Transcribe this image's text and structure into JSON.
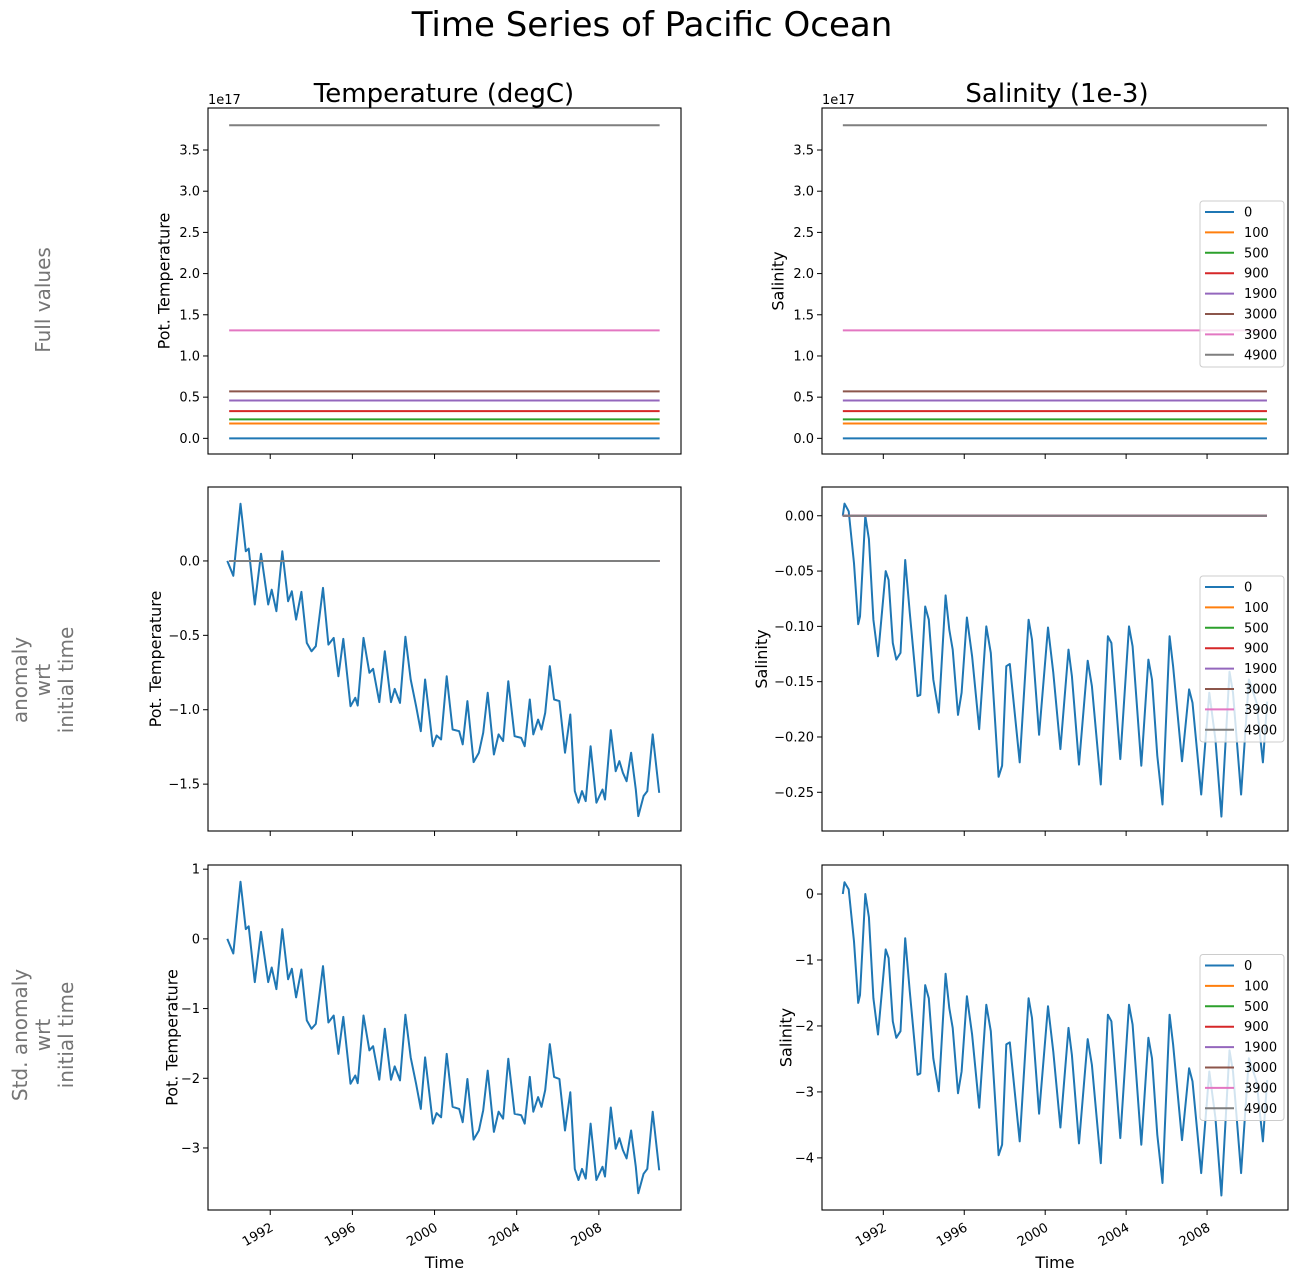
{
  "title": "Time Series of Pacific Ocean",
  "colors": [
    "#1f77b4",
    "#ff7f0e",
    "#2ca02c",
    "#d62728",
    "#9467bd",
    "#8c564b",
    "#e377c2",
    "#7f7f7f"
  ],
  "row_labels": [
    [
      "Full values"
    ],
    [
      "anomaly",
      "wrt",
      "initial time"
    ],
    [
      "Std. anomaly",
      "wrt",
      "initial time"
    ]
  ],
  "row_label_color": "#757575",
  "chart_data": {
    "type": "line",
    "grid": false,
    "column_titles": [
      "Temperature (degC)",
      "Salinity (1e-3)"
    ],
    "xlabel": "Time",
    "xticks": [
      1992,
      1996,
      2000,
      2004,
      2008
    ],
    "xtick_labels": [
      "1992",
      "1996",
      "2000",
      "2004",
      "2008"
    ],
    "xlim": [
      1988.97,
      2012.0
    ],
    "legend_entries": [
      "0",
      "100",
      "500",
      "900",
      "1900",
      "3000",
      "3900",
      "4900"
    ],
    "legend_placement": "center-right",
    "flat_series_x_range": [
      1990.0,
      2010.96
    ],
    "full_values_1e17": [
      0,
      0.18,
      0.23,
      0.33,
      0.46,
      0.57,
      1.31,
      3.8
    ],
    "temperature_x": [
      1989.91,
      1990.2,
      1990.55,
      1990.81,
      1990.95,
      1991.25,
      1991.55,
      1991.9,
      1992.07,
      1992.3,
      1992.59,
      1992.87,
      1993.05,
      1993.26,
      1993.52,
      1993.78,
      1994.01,
      1994.22,
      1994.57,
      1994.83,
      1995.09,
      1995.32,
      1995.56,
      1995.91,
      1996.14,
      1996.26,
      1996.54,
      1996.83,
      1997.01,
      1997.31,
      1997.58,
      1997.88,
      1998.06,
      1998.32,
      1998.58,
      1998.84,
      1999.1,
      1999.33,
      1999.54,
      1999.92,
      2000.1,
      2000.32,
      2000.59,
      2000.88,
      2001.2,
      2001.37,
      2001.6,
      2001.9,
      2002.16,
      2002.37,
      2002.59,
      2002.89,
      2003.12,
      2003.34,
      2003.59,
      2003.9,
      2004.22,
      2004.39,
      2004.64,
      2004.81,
      2005.04,
      2005.21,
      2005.39,
      2005.61,
      2005.82,
      2006.08,
      2006.35,
      2006.61,
      2006.83,
      2007.01,
      2007.18,
      2007.36,
      2007.6,
      2007.88,
      2008.18,
      2008.3,
      2008.58,
      2008.82,
      2009.0,
      2009.17,
      2009.35,
      2009.57,
      2009.8,
      2009.92,
      2010.18,
      2010.36,
      2010.62,
      2010.94
    ],
    "temperature_anomaly_0": [
      0,
      -0.1,
      0.385,
      0.065,
      0.083,
      -0.293,
      0.049,
      -0.293,
      -0.193,
      -0.338,
      0.065,
      -0.271,
      -0.204,
      -0.394,
      -0.208,
      -0.551,
      -0.607,
      -0.573,
      -0.181,
      -0.562,
      -0.517,
      -0.775,
      -0.524,
      -0.976,
      -0.92,
      -0.972,
      -0.517,
      -0.752,
      -0.725,
      -0.949,
      -0.607,
      -0.949,
      -0.86,
      -0.954,
      -0.51,
      -0.797,
      -0.976,
      -1.144,
      -0.797,
      -1.245,
      -1.173,
      -1.2,
      -0.775,
      -1.133,
      -1.144,
      -1.233,
      -0.942,
      -1.352,
      -1.289,
      -1.155,
      -0.886,
      -1.301,
      -1.166,
      -1.211,
      -0.808,
      -1.178,
      -1.189,
      -1.245,
      -0.931,
      -1.166,
      -1.066,
      -1.133,
      -1.021,
      -0.707,
      -0.931,
      -0.942,
      -1.289,
      -1.032,
      -1.547,
      -1.625,
      -1.547,
      -1.614,
      -1.245,
      -1.625,
      -1.536,
      -1.603,
      -1.137,
      -1.413,
      -1.345,
      -1.424,
      -1.48,
      -1.289,
      -1.536,
      -1.715,
      -1.58,
      -1.547,
      -1.166,
      -1.558
    ],
    "temperature_std_anomaly_0": [
      0,
      -0.21,
      0.82,
      0.14,
      0.18,
      -0.62,
      0.1,
      -0.62,
      -0.41,
      -0.72,
      0.14,
      -0.58,
      -0.43,
      -0.84,
      -0.44,
      -1.17,
      -1.29,
      -1.22,
      -0.39,
      -1.2,
      -1.1,
      -1.65,
      -1.12,
      -2.08,
      -1.96,
      -2.07,
      -1.1,
      -1.6,
      -1.54,
      -2.02,
      -1.29,
      -2.02,
      -1.83,
      -2.03,
      -1.09,
      -1.7,
      -2.08,
      -2.44,
      -1.7,
      -2.65,
      -2.5,
      -2.56,
      -1.65,
      -2.41,
      -2.44,
      -2.63,
      -2.01,
      -2.88,
      -2.75,
      -2.46,
      -1.89,
      -2.77,
      -2.48,
      -2.58,
      -1.72,
      -2.51,
      -2.53,
      -2.65,
      -1.98,
      -2.48,
      -2.27,
      -2.41,
      -2.17,
      -1.51,
      -1.98,
      -2.01,
      -2.75,
      -2.2,
      -3.3,
      -3.46,
      -3.3,
      -3.44,
      -2.65,
      -3.46,
      -3.27,
      -3.41,
      -2.42,
      -3.01,
      -2.86,
      -3.03,
      -3.15,
      -2.75,
      -3.27,
      -3.65,
      -3.37,
      -3.3,
      -2.48,
      -3.32
    ],
    "salinity_x": [
      1990.0,
      1990.08,
      1990.29,
      1990.55,
      1990.76,
      1990.85,
      1991.11,
      1991.29,
      1991.51,
      1991.74,
      1992.12,
      1992.26,
      1992.47,
      1992.64,
      1992.85,
      1993.08,
      1993.31,
      1993.69,
      1993.83,
      1994.07,
      1994.25,
      1994.47,
      1994.74,
      1995.08,
      1995.26,
      1995.43,
      1995.69,
      1995.87,
      1996.13,
      1996.39,
      1996.74,
      1997.09,
      1997.31,
      1997.7,
      1997.87,
      1998.08,
      1998.25,
      1998.74,
      1999.18,
      1999.35,
      1999.7,
      2000.14,
      2000.4,
      2000.75,
      2001.15,
      2001.32,
      2001.67,
      2002.1,
      2002.31,
      2002.75,
      2003.1,
      2003.27,
      2003.71,
      2004.14,
      2004.32,
      2004.75,
      2005.1,
      2005.28,
      2005.54,
      2005.8,
      2006.15,
      2006.32,
      2006.76,
      2007.11,
      2007.28,
      2007.71,
      2008.11,
      2008.41,
      2008.71,
      2009.11,
      2009.28,
      2009.68,
      2010.07,
      2010.45,
      2010.76,
      2010.97
    ],
    "salinity_anomaly_0": [
      0,
      0.011,
      0.004,
      -0.043,
      -0.098,
      -0.091,
      0,
      -0.021,
      -0.094,
      -0.127,
      -0.05,
      -0.058,
      -0.115,
      -0.13,
      -0.124,
      -0.04,
      -0.088,
      -0.163,
      -0.162,
      -0.082,
      -0.094,
      -0.148,
      -0.178,
      -0.072,
      -0.103,
      -0.121,
      -0.18,
      -0.16,
      -0.092,
      -0.127,
      -0.193,
      -0.1,
      -0.124,
      -0.236,
      -0.226,
      -0.136,
      -0.134,
      -0.223,
      -0.094,
      -0.112,
      -0.198,
      -0.101,
      -0.142,
      -0.211,
      -0.121,
      -0.145,
      -0.225,
      -0.131,
      -0.154,
      -0.243,
      -0.109,
      -0.115,
      -0.22,
      -0.1,
      -0.118,
      -0.226,
      -0.13,
      -0.148,
      -0.217,
      -0.261,
      -0.109,
      -0.136,
      -0.222,
      -0.157,
      -0.169,
      -0.252,
      -0.16,
      -0.202,
      -0.272,
      -0.141,
      -0.16,
      -0.252,
      -0.148,
      -0.169,
      -0.223,
      -0.168
    ],
    "salinity_std_anomaly_0": [
      0,
      0.18,
      0.07,
      -0.72,
      -1.65,
      -1.53,
      0,
      -0.35,
      -1.58,
      -2.13,
      -0.84,
      -0.97,
      -1.93,
      -2.18,
      -2.08,
      -0.67,
      -1.48,
      -2.74,
      -2.72,
      -1.38,
      -1.58,
      -2.49,
      -2.99,
      -1.21,
      -1.73,
      -2.03,
      -3.02,
      -2.69,
      -1.55,
      -2.13,
      -3.24,
      -1.68,
      -2.08,
      -3.96,
      -3.8,
      -2.28,
      -2.25,
      -3.75,
      -1.58,
      -1.88,
      -3.33,
      -1.7,
      -2.39,
      -3.54,
      -2.03,
      -2.44,
      -3.78,
      -2.2,
      -2.59,
      -4.08,
      -1.83,
      -1.93,
      -3.7,
      -1.68,
      -1.98,
      -3.8,
      -2.18,
      -2.49,
      -3.65,
      -4.38,
      -1.83,
      -2.28,
      -3.73,
      -2.64,
      -2.84,
      -4.23,
      -2.69,
      -3.39,
      -4.57,
      -2.37,
      -2.69,
      -4.23,
      -2.49,
      -2.84,
      -3.75,
      -2.82
    ],
    "panels": [
      {
        "row": 0,
        "col": 0,
        "ylabel": "Pot. Temperature",
        "offset_text": "1e17",
        "ylim": [
          -0.19,
          4.01
        ],
        "yticks": [
          0,
          0.5,
          1,
          1.5,
          2,
          2.5,
          3,
          3.5
        ],
        "ytick_labels": [
          "0.0",
          "0.5",
          "1.0",
          "1.5",
          "2.0",
          "2.5",
          "3.0",
          "3.5"
        ],
        "kind": "full",
        "legend": false,
        "xtick_labels_shown": false
      },
      {
        "row": 0,
        "col": 1,
        "ylabel": "Salinity",
        "offset_text": "1e17",
        "ylim": [
          -0.19,
          4.01
        ],
        "yticks": [
          0,
          0.5,
          1,
          1.5,
          2,
          2.5,
          3,
          3.5
        ],
        "ytick_labels": [
          "0.0",
          "0.5",
          "1.0",
          "1.5",
          "2.0",
          "2.5",
          "3.0",
          "3.5"
        ],
        "kind": "full",
        "legend": true,
        "xtick_labels_shown": false
      },
      {
        "row": 1,
        "col": 0,
        "ylabel": "Pot. Temperature",
        "ylim": [
          -1.815,
          0.497
        ],
        "yticks": [
          0,
          -0.5,
          -1,
          -1.5
        ],
        "ytick_labels": [
          "0.0",
          "−0.5",
          "−1.0",
          "−1.5"
        ],
        "kind": "anomaly",
        "var": "temperature",
        "legend": false,
        "xtick_labels_shown": false
      },
      {
        "row": 1,
        "col": 1,
        "ylabel": "Salinity",
        "ylim": [
          -0.285,
          0.026
        ],
        "yticks": [
          0,
          -0.05,
          -0.1,
          -0.15,
          -0.2,
          -0.25
        ],
        "ytick_labels": [
          "0.00",
          "−0.05",
          "−0.10",
          "−0.15",
          "−0.20",
          "−0.25"
        ],
        "kind": "anomaly",
        "var": "salinity",
        "legend": true,
        "xtick_labels_shown": false
      },
      {
        "row": 2,
        "col": 0,
        "ylabel": "Pot. Temperature",
        "ylim": [
          -3.89,
          1.06
        ],
        "yticks": [
          1,
          0,
          -1,
          -2,
          -3
        ],
        "ytick_labels": [
          "1",
          "0",
          "−1",
          "−2",
          "−3"
        ],
        "kind": "std",
        "var": "temperature",
        "legend": false,
        "xtick_labels_shown": true
      },
      {
        "row": 2,
        "col": 1,
        "ylabel": "Salinity",
        "ylim": [
          -4.79,
          0.44
        ],
        "yticks": [
          0,
          -1,
          -2,
          -3,
          -4
        ],
        "ytick_labels": [
          "0",
          "−1",
          "−2",
          "−3",
          "−4"
        ],
        "kind": "std",
        "var": "salinity",
        "legend": true,
        "xtick_labels_shown": true
      }
    ]
  }
}
